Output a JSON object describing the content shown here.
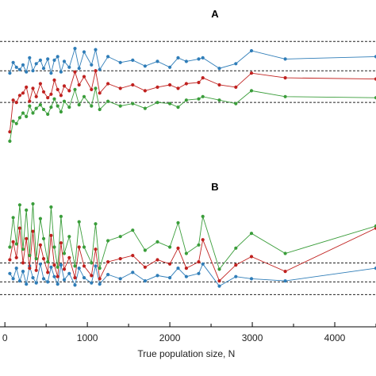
{
  "chart_data": {
    "type": "line",
    "xlabel": "True population size, N",
    "xlim": [
      -40,
      4500
    ],
    "xticks": [
      0,
      1000,
      2000,
      3000,
      4000
    ],
    "x_tick_labels": [
      "0",
      "1000",
      "2000",
      "3000",
      "4000"
    ],
    "colors": {
      "blue": "#2f7db8",
      "red": "#c0211f",
      "green": "#3a9d3a"
    },
    "panels": [
      {
        "label": "A",
        "ylim": [
          0,
          10
        ],
        "reference_lines": [
          8.5,
          6.0,
          3.3
        ],
        "x": [
          60,
          100,
          140,
          180,
          220,
          260,
          300,
          340,
          380,
          430,
          470,
          520,
          560,
          600,
          640,
          680,
          720,
          780,
          850,
          900,
          960,
          1050,
          1100,
          1150,
          1250,
          1400,
          1550,
          1700,
          1850,
          2000,
          2100,
          2200,
          2350,
          2400,
          2600,
          2800,
          2990,
          3400,
          4500
        ],
        "series": [
          {
            "color": "blue",
            "values": [
              5.8,
              6.7,
              6.3,
              6.1,
              6.5,
              5.9,
              7.1,
              6.0,
              6.6,
              6.9,
              6.2,
              7.0,
              5.8,
              6.9,
              7.2,
              5.9,
              6.8,
              6.3,
              7.9,
              6.2,
              7.6,
              6.5,
              7.8,
              6.1,
              7.2,
              6.7,
              6.9,
              6.4,
              6.8,
              6.3,
              7.1,
              6.8,
              7.0,
              7.1,
              6.2,
              6.6,
              7.7,
              7.0,
              7.2
            ]
          },
          {
            "color": "red",
            "values": [
              0.8,
              3.5,
              3.3,
              3.9,
              4.1,
              4.6,
              3.4,
              4.5,
              3.8,
              4.9,
              4.2,
              3.7,
              4.0,
              5.2,
              4.4,
              3.9,
              4.7,
              4.3,
              5.9,
              4.8,
              5.5,
              4.4,
              6.0,
              4.1,
              4.9,
              4.5,
              4.8,
              4.3,
              4.6,
              4.8,
              4.5,
              4.9,
              5.0,
              5.4,
              4.8,
              4.6,
              5.8,
              5.4,
              5.3
            ]
          },
          {
            "color": "green",
            "values": [
              0.0,
              1.7,
              1.5,
              2.0,
              2.4,
              2.1,
              3.0,
              2.4,
              2.8,
              3.1,
              2.7,
              2.3,
              2.9,
              3.6,
              3.0,
              2.5,
              3.4,
              2.9,
              4.4,
              3.1,
              3.8,
              3.0,
              4.5,
              2.7,
              3.4,
              3.0,
              3.2,
              2.8,
              3.3,
              3.2,
              2.9,
              3.5,
              3.6,
              3.8,
              3.5,
              3.2,
              4.3,
              3.8,
              3.7
            ]
          }
        ]
      },
      {
        "label": "B",
        "ylim": [
          0,
          10
        ],
        "reference_lines": [
          3.5,
          1.7,
          0.5
        ],
        "x": [
          60,
          100,
          140,
          180,
          220,
          260,
          300,
          340,
          380,
          430,
          470,
          520,
          560,
          600,
          640,
          680,
          720,
          780,
          850,
          900,
          960,
          1050,
          1100,
          1150,
          1250,
          1400,
          1550,
          1700,
          1850,
          2000,
          2100,
          2200,
          2350,
          2400,
          2600,
          2800,
          2990,
          3400,
          4500
        ],
        "series": [
          {
            "color": "blue",
            "values": [
              2.5,
              2.0,
              3.0,
              1.8,
              2.7,
              1.5,
              3.2,
              2.1,
              1.6,
              3.4,
              2.0,
              1.7,
              3.1,
              2.2,
              1.5,
              3.3,
              1.9,
              2.5,
              1.4,
              3.0,
              2.1,
              1.6,
              3.2,
              1.5,
              2.4,
              2.0,
              2.6,
              1.8,
              2.3,
              2.1,
              3.0,
              2.2,
              2.5,
              3.4,
              1.3,
              2.2,
              2.0,
              1.8,
              3.0
            ]
          },
          {
            "color": "red",
            "values": [
              3.8,
              5.5,
              4.0,
              6.8,
              3.5,
              5.8,
              3.0,
              6.5,
              2.8,
              5.2,
              3.9,
              2.6,
              6.1,
              3.3,
              2.2,
              5.4,
              2.9,
              4.0,
              2.1,
              5.0,
              3.2,
              2.3,
              4.8,
              2.0,
              3.6,
              3.9,
              4.2,
              3.1,
              3.8,
              3.4,
              4.9,
              3.0,
              3.6,
              5.7,
              1.8,
              3.3,
              4.1,
              2.7,
              6.8
            ]
          },
          {
            "color": "green",
            "values": [
              5.0,
              7.8,
              5.3,
              9.0,
              4.8,
              8.5,
              4.2,
              9.1,
              3.9,
              7.7,
              5.8,
              3.6,
              8.8,
              5.0,
              3.1,
              7.9,
              4.4,
              6.0,
              3.2,
              7.4,
              5.0,
              3.5,
              7.2,
              3.0,
              5.6,
              6.0,
              6.6,
              4.7,
              5.5,
              5.0,
              7.3,
              4.4,
              5.2,
              7.9,
              2.9,
              4.9,
              6.3,
              4.4,
              7.0
            ]
          }
        ]
      }
    ]
  }
}
